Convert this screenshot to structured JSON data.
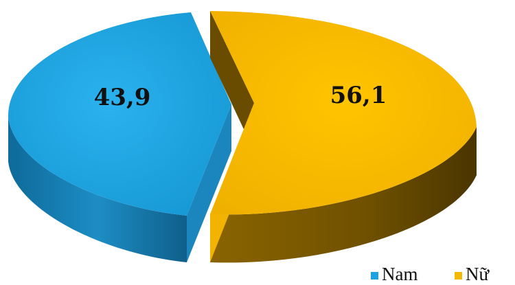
{
  "chart_data": {
    "type": "pie",
    "categories": [
      "Nam",
      "Nữ"
    ],
    "values": [
      43.9,
      56.1
    ],
    "labels": [
      "43,9",
      "56,1"
    ],
    "colors": [
      "#1aa3e0",
      "#f5b800"
    ],
    "side_colors": [
      "#1577a8",
      "#7a5800"
    ],
    "legend_position": "bottom-right",
    "exploded": true
  }
}
